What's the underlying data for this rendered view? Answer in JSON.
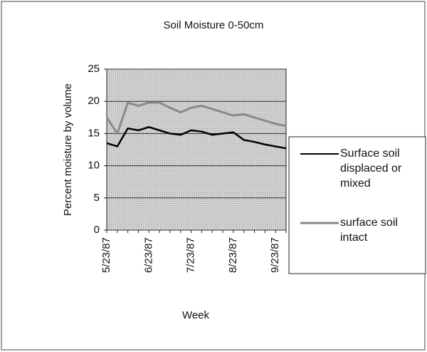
{
  "chart_data": {
    "type": "line",
    "title": "Soil Moisture  0-50cm",
    "x_label": "Week",
    "y_label": "Percent moisture by volume",
    "categories": [
      "5/23/87",
      null,
      null,
      null,
      "6/23/87",
      null,
      null,
      null,
      "7/23/87",
      null,
      null,
      null,
      "8/23/87",
      null,
      null,
      null,
      "9/23/87",
      null
    ],
    "series": [
      {
        "name": "Surface soil displaced or mixed",
        "color": "#000000",
        "values": [
          13.5,
          13,
          15.8,
          15.5,
          16,
          15.5,
          15,
          14.8,
          15.5,
          15.3,
          14.8,
          15,
          15.2,
          14,
          13.7,
          13.3,
          13,
          12.7
        ]
      },
      {
        "name": "surface soil intact",
        "color": "#8a8a8a",
        "values": [
          17.5,
          15,
          19.8,
          19.3,
          19.8,
          19.8,
          19,
          18.3,
          19,
          19.3,
          18.8,
          18.3,
          17.8,
          18,
          17.5,
          17,
          16.5,
          16.2
        ]
      }
    ],
    "ylim": [
      0,
      25
    ],
    "yticks": [
      0,
      5,
      10,
      15,
      20,
      25
    ],
    "grid": true
  }
}
